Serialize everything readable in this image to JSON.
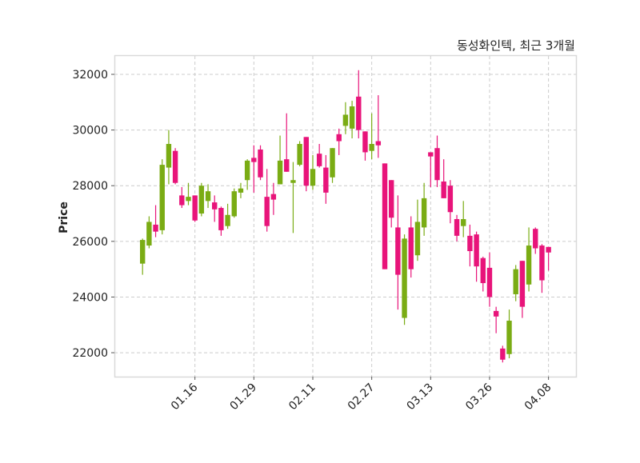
{
  "chart_data": {
    "type": "candlestick",
    "title": "동성화인텍, 최근 3개월",
    "xlabel": "",
    "ylabel": "Price",
    "ylim": [
      21140,
      32660
    ],
    "xlim": [
      -4.3,
      66.2
    ],
    "grid": true,
    "yticks": [
      22000,
      24000,
      26000,
      28000,
      30000,
      32000
    ],
    "ytick_labels": [
      "22000",
      "24000",
      "26000",
      "28000",
      "30000",
      "32000"
    ],
    "xticks": [
      {
        "index": 8,
        "label": "01.16"
      },
      {
        "index": 17,
        "label": "01.29"
      },
      {
        "index": 26,
        "label": "02.11"
      },
      {
        "index": 35,
        "label": "02.27"
      },
      {
        "index": 44,
        "label": "03.13"
      },
      {
        "index": 53,
        "label": "03.26"
      },
      {
        "index": 62,
        "label": "04.08"
      }
    ],
    "colors": {
      "up": "#7aac14",
      "down": "#e8147a",
      "grid": "#cccccc",
      "frame": "#d9d9d9"
    },
    "columns": [
      "open",
      "high",
      "low",
      "close"
    ],
    "ohlc": [
      [
        25200,
        26100,
        24800,
        26050
      ],
      [
        25850,
        26900,
        25750,
        26700
      ],
      [
        26600,
        27300,
        26150,
        26350
      ],
      [
        26400,
        28950,
        26250,
        28750
      ],
      [
        28650,
        30000,
        28050,
        29500
      ],
      [
        29250,
        29350,
        28050,
        28100
      ],
      [
        27650,
        27950,
        27200,
        27300
      ],
      [
        27450,
        28100,
        27300,
        27600
      ],
      [
        27650,
        27650,
        26700,
        26750
      ],
      [
        27000,
        28100,
        26900,
        28000
      ],
      [
        27450,
        28050,
        27200,
        27800
      ],
      [
        27400,
        27650,
        26700,
        27150
      ],
      [
        27200,
        27250,
        26200,
        26400
      ],
      [
        26550,
        27350,
        26450,
        26950
      ],
      [
        26900,
        27900,
        26850,
        27800
      ],
      [
        27750,
        28100,
        27550,
        27900
      ],
      [
        28200,
        28950,
        27850,
        28900
      ],
      [
        29000,
        29450,
        27750,
        28850
      ],
      [
        29300,
        29450,
        28200,
        28300
      ],
      [
        27600,
        28600,
        26350,
        26550
      ],
      [
        27700,
        28100,
        26950,
        27500
      ],
      [
        28050,
        29800,
        28050,
        28900
      ],
      [
        28950,
        30600,
        28500,
        28500
      ],
      [
        28100,
        28850,
        26300,
        28200
      ],
      [
        28750,
        29600,
        28700,
        29500
      ],
      [
        29750,
        29750,
        27800,
        28000
      ],
      [
        28000,
        29100,
        27850,
        28600
      ],
      [
        29150,
        29500,
        28650,
        28700
      ],
      [
        28650,
        29100,
        27350,
        27750
      ],
      [
        28300,
        29350,
        28100,
        29350
      ],
      [
        29850,
        30050,
        29100,
        29600
      ],
      [
        30150,
        31000,
        29850,
        30550
      ],
      [
        30050,
        31050,
        29700,
        30850
      ],
      [
        31200,
        32150,
        29700,
        30000
      ],
      [
        29950,
        29950,
        28900,
        29200
      ],
      [
        29250,
        30600,
        28950,
        29500
      ],
      [
        29600,
        31250,
        29000,
        29450
      ],
      [
        28800,
        28800,
        25000,
        25000
      ],
      [
        28200,
        28200,
        26500,
        26850
      ],
      [
        26500,
        27650,
        23550,
        24800
      ],
      [
        23250,
        26250,
        23000,
        26100
      ],
      [
        26500,
        26900,
        24700,
        25000
      ],
      [
        25500,
        27500,
        25300,
        26700
      ],
      [
        26500,
        28100,
        26200,
        27550
      ],
      [
        29200,
        29200,
        27950,
        29050
      ],
      [
        29350,
        29800,
        27950,
        28200
      ],
      [
        28150,
        28950,
        27550,
        27550
      ],
      [
        28000,
        28200,
        26650,
        27050
      ],
      [
        26800,
        26950,
        26000,
        26200
      ],
      [
        26550,
        27450,
        26150,
        26800
      ],
      [
        26200,
        26600,
        25100,
        25650
      ],
      [
        26250,
        26350,
        24550,
        25100
      ],
      [
        25400,
        25450,
        24200,
        24500
      ],
      [
        25050,
        25600,
        23650,
        24000
      ],
      [
        23500,
        23650,
        22700,
        23300
      ],
      [
        22150,
        22250,
        21650,
        21750
      ],
      [
        21950,
        23550,
        21800,
        23150
      ],
      [
        24100,
        25150,
        23850,
        25000
      ],
      [
        25300,
        25300,
        23250,
        23650
      ],
      [
        24450,
        26500,
        24200,
        25850
      ],
      [
        26450,
        26500,
        25550,
        25750
      ],
      [
        25850,
        25900,
        24150,
        24600
      ],
      [
        25800,
        25800,
        24950,
        25600
      ]
    ]
  }
}
